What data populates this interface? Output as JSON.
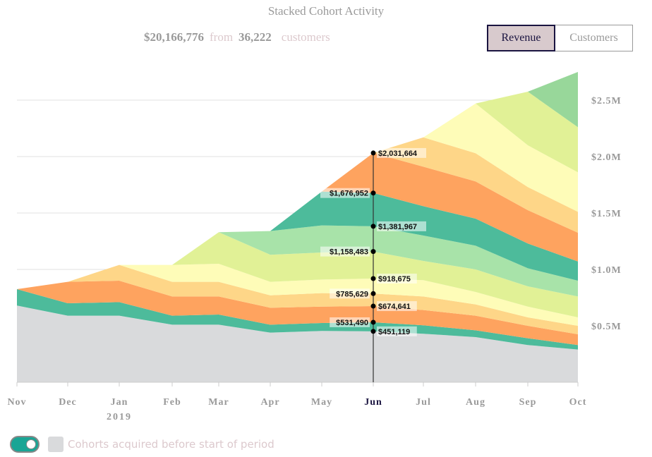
{
  "header": {
    "title": "Stacked Cohort Activity",
    "total": "$20,166,776",
    "from_label": "from",
    "customers_count": "36,222",
    "customers_label": "customers"
  },
  "toggle_buttons": {
    "revenue": "Revenue",
    "customers": "Customers",
    "active": "revenue"
  },
  "legend": {
    "toggle_on": true,
    "label": "Cohorts acquired before start of period",
    "swatch_color": "#d9dadc"
  },
  "chart_data": {
    "type": "area",
    "stacked": true,
    "title": "Stacked Cohort Activity",
    "categories": [
      "Nov",
      "Dec",
      "Jan",
      "Feb",
      "Mar",
      "Apr",
      "May",
      "Jun",
      "Jul",
      "Aug",
      "Sep",
      "Oct"
    ],
    "year_label": {
      "under": "Jan",
      "text": "2019"
    },
    "y_unit": "M",
    "ylim": [
      0,
      2.75
    ],
    "y_ticks": [
      {
        "v": 0.5,
        "label": "$0.5M"
      },
      {
        "v": 1.0,
        "label": "$1.0M"
      },
      {
        "v": 1.5,
        "label": "$1.5M"
      },
      {
        "v": 2.0,
        "label": "$2.0M"
      },
      {
        "v": 2.5,
        "label": "$2.5M"
      }
    ],
    "grid": true,
    "y_axis_side": "right",
    "cumulative_series": [
      {
        "color": "#d9dadc",
        "values": [
          0.68,
          0.59,
          0.59,
          0.51,
          0.51,
          0.44,
          0.455,
          0.451,
          0.43,
          0.4,
          0.33,
          0.29
        ]
      },
      {
        "color": "#4dbb9b",
        "values": [
          0.825,
          0.7,
          0.71,
          0.59,
          0.6,
          0.51,
          0.525,
          0.531,
          0.505,
          0.46,
          0.39,
          0.33
        ]
      },
      {
        "color": "#fea35f",
        "values": [
          null,
          0.89,
          0.9,
          0.76,
          0.76,
          0.66,
          0.67,
          0.675,
          0.64,
          0.59,
          0.5,
          0.425
        ]
      },
      {
        "color": "#fed688",
        "values": [
          null,
          null,
          1.04,
          0.89,
          0.89,
          0.77,
          0.79,
          0.786,
          0.76,
          0.69,
          0.575,
          0.5
        ]
      },
      {
        "color": "#fefcb8",
        "values": [
          null,
          null,
          null,
          1.04,
          1.05,
          0.89,
          0.91,
          0.919,
          0.905,
          0.8,
          0.67,
          0.575
        ]
      },
      {
        "color": "#e1f196",
        "values": [
          null,
          null,
          null,
          null,
          1.33,
          1.13,
          1.15,
          1.158,
          1.075,
          1.0,
          0.85,
          0.76
        ]
      },
      {
        "color": "#a8e3a9",
        "values": [
          null,
          null,
          null,
          null,
          null,
          1.34,
          1.39,
          1.382,
          1.3,
          1.21,
          1.01,
          0.9
        ]
      },
      {
        "color": "#4dbb9b",
        "values": [
          null,
          null,
          null,
          null,
          null,
          null,
          1.69,
          1.677,
          1.56,
          1.45,
          1.23,
          1.07
        ]
      },
      {
        "color": "#fea35f",
        "values": [
          null,
          null,
          null,
          null,
          null,
          null,
          null,
          2.032,
          1.91,
          1.78,
          1.525,
          1.325
        ]
      },
      {
        "color": "#fed688",
        "values": [
          null,
          null,
          null,
          null,
          null,
          null,
          null,
          null,
          2.17,
          2.03,
          1.73,
          1.51
        ]
      },
      {
        "color": "#fefcb8",
        "values": [
          null,
          null,
          null,
          null,
          null,
          null,
          null,
          null,
          null,
          2.47,
          2.1,
          1.86
        ]
      },
      {
        "color": "#e1f196",
        "values": [
          null,
          null,
          null,
          null,
          null,
          null,
          null,
          null,
          null,
          null,
          2.575,
          2.26
        ]
      },
      {
        "color": "#98d79a",
        "values": [
          null,
          null,
          null,
          null,
          null,
          null,
          null,
          null,
          null,
          null,
          null,
          2.75
        ]
      }
    ],
    "hover": {
      "category": "Jun",
      "points": [
        {
          "v": 0.451119,
          "label": "$451,119",
          "side": "right"
        },
        {
          "v": 0.53149,
          "label": "$531,490",
          "side": "left"
        },
        {
          "v": 0.674641,
          "label": "$674,641",
          "side": "right"
        },
        {
          "v": 0.785629,
          "label": "$785,629",
          "side": "left"
        },
        {
          "v": 0.918675,
          "label": "$918,675",
          "side": "right"
        },
        {
          "v": 1.158483,
          "label": "$1,158,483",
          "side": "left"
        },
        {
          "v": 1.381967,
          "label": "$1,381,967",
          "side": "right"
        },
        {
          "v": 1.676952,
          "label": "$1,676,952",
          "side": "left"
        },
        {
          "v": 2.031664,
          "label": "$2,031,664",
          "side": "right"
        }
      ]
    }
  }
}
